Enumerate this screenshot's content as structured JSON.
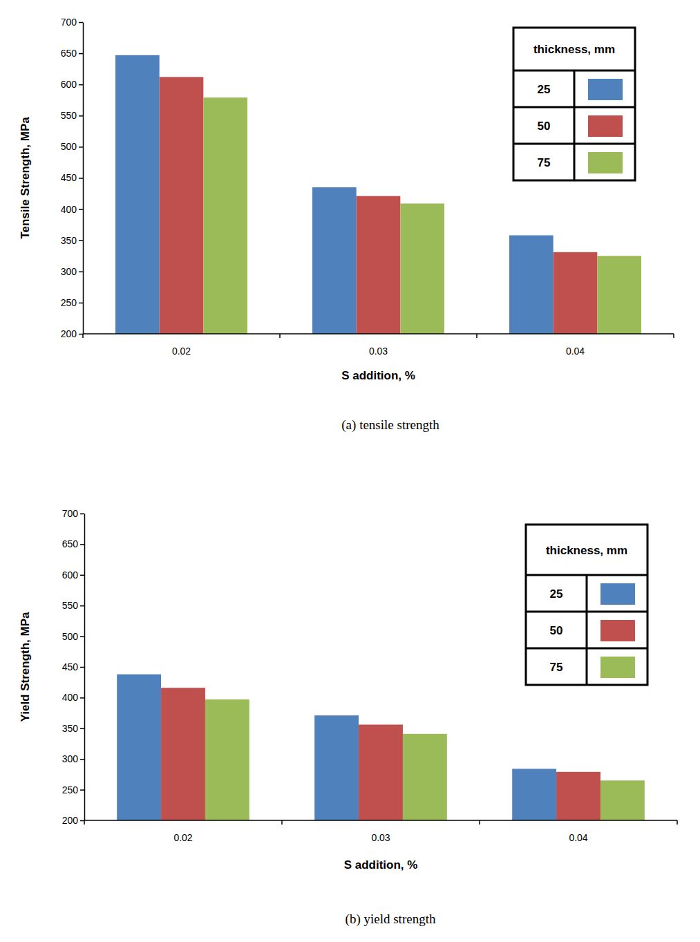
{
  "chart_data": [
    {
      "type": "bar",
      "title": "(a)  tensile  strength",
      "x_label": "S addition, %",
      "y_label": "Tensile Strength, MPa",
      "categories": [
        "0.02",
        "0.03",
        "0.04"
      ],
      "legend_title": "thickness, mm",
      "series": [
        {
          "name": "25",
          "color": "#4f81bd",
          "values": [
            647,
            435,
            358
          ]
        },
        {
          "name": "50",
          "color": "#c0504d",
          "values": [
            612,
            421,
            331
          ]
        },
        {
          "name": "75",
          "color": "#9bbb59",
          "values": [
            579,
            409,
            325
          ]
        }
      ],
      "ylim": [
        200,
        700
      ],
      "yticks": [
        200,
        250,
        300,
        350,
        400,
        450,
        500,
        550,
        600,
        650,
        700
      ],
      "grid": false,
      "legend": "upper right"
    },
    {
      "type": "bar",
      "title": "(b)  yield  strength",
      "x_label": "S addition, %",
      "y_label": "Yield Strength, MPa",
      "categories": [
        "0.02",
        "0.03",
        "0.04"
      ],
      "legend_title": "thickness, mm",
      "series": [
        {
          "name": "25",
          "color": "#4f81bd",
          "values": [
            438,
            371,
            284
          ]
        },
        {
          "name": "50",
          "color": "#c0504d",
          "values": [
            416,
            356,
            279
          ]
        },
        {
          "name": "75",
          "color": "#9bbb59",
          "values": [
            397,
            341,
            265
          ]
        }
      ],
      "ylim": [
        200,
        700
      ],
      "yticks": [
        200,
        250,
        300,
        350,
        400,
        450,
        500,
        550,
        600,
        650,
        700
      ],
      "grid": false,
      "legend": "upper right"
    }
  ]
}
